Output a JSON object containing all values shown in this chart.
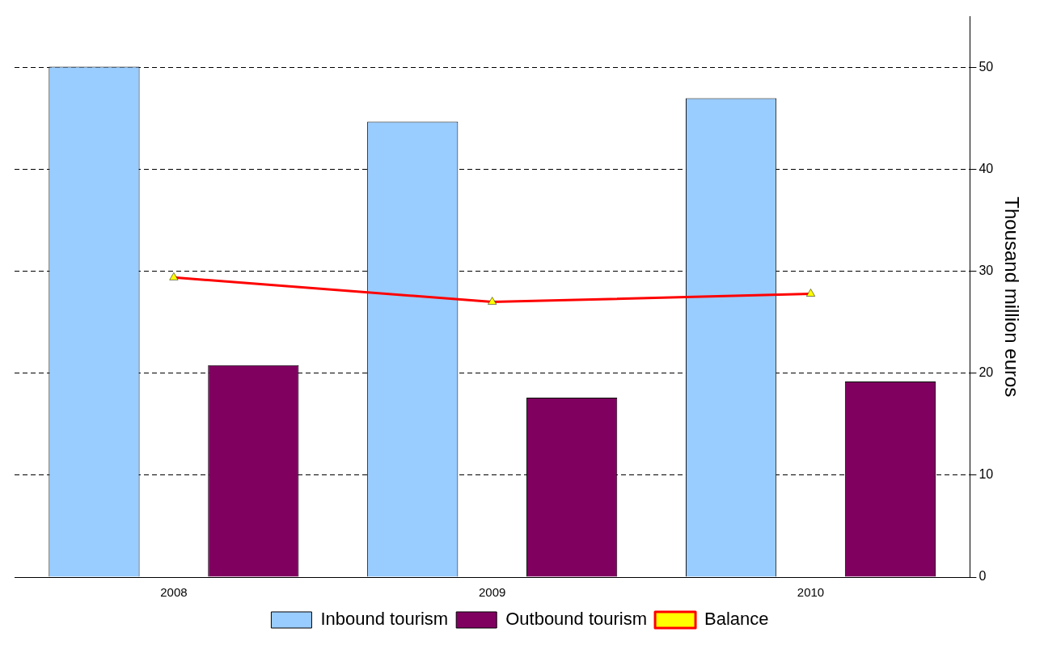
{
  "chart_data": {
    "type": "bar",
    "ylabel": "Thousand million euros",
    "categories": [
      "2008",
      "2009",
      "2010"
    ],
    "series": [
      {
        "name": "Inbound tourism",
        "color": "#99ccff",
        "values": [
          50.1,
          44.7,
          47.0
        ]
      },
      {
        "name": "Outbound tourism",
        "color": "#800060",
        "values": [
          20.8,
          17.6,
          19.2
        ]
      },
      {
        "name": "Balance",
        "type": "line",
        "color": "#ff0000",
        "values": [
          29.4,
          27.0,
          27.8
        ]
      }
    ],
    "ylim": [
      0,
      55
    ],
    "yticks": [
      0,
      10,
      20,
      30,
      40,
      50
    ],
    "grid": "y",
    "line_style": "solid",
    "marker": "triangle",
    "legend": "bottom"
  }
}
